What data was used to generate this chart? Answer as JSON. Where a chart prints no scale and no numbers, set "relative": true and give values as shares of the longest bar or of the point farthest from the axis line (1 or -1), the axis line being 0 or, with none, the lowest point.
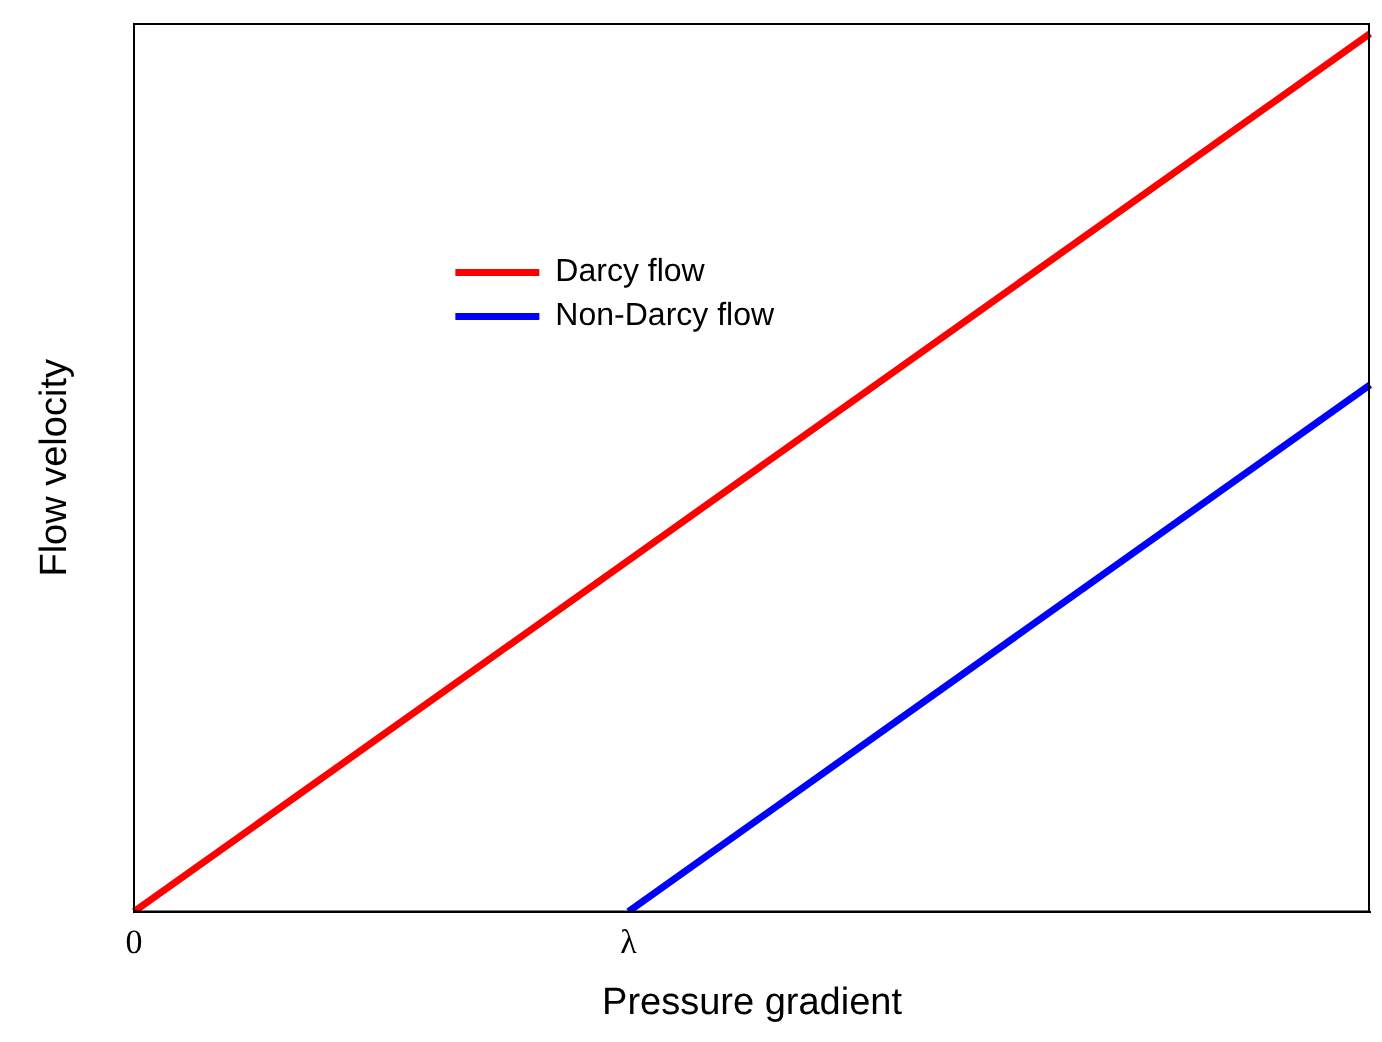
{
  "chart_data": {
    "type": "line",
    "relative": true,
    "xlabel": "Pressure gradient",
    "ylabel": "Flow velocity",
    "categories": [
      "0",
      null,
      null,
      null,
      null,
      null,
      null,
      null,
      "λ",
      null,
      null,
      null,
      null,
      null,
      null,
      null,
      null,
      null,
      null,
      null,
      null
    ],
    "grid": false,
    "legend": "top left",
    "marker": "none",
    "line_style": "solid",
    "series": [
      {
        "name": "Darcy flow",
        "color": "#ff0000",
        "values": [
          0,
          null,
          null,
          null,
          null,
          null,
          null,
          null,
          null,
          null,
          null,
          null,
          null,
          null,
          null,
          null,
          null,
          null,
          null,
          null,
          1
        ]
      },
      {
        "name": "Non-Darcy flow",
        "color": "#0000ff",
        "values": [
          null,
          null,
          null,
          null,
          null,
          null,
          null,
          null,
          0,
          null,
          null,
          null,
          null,
          null,
          null,
          null,
          null,
          null,
          null,
          null,
          0.6
        ]
      }
    ]
  }
}
